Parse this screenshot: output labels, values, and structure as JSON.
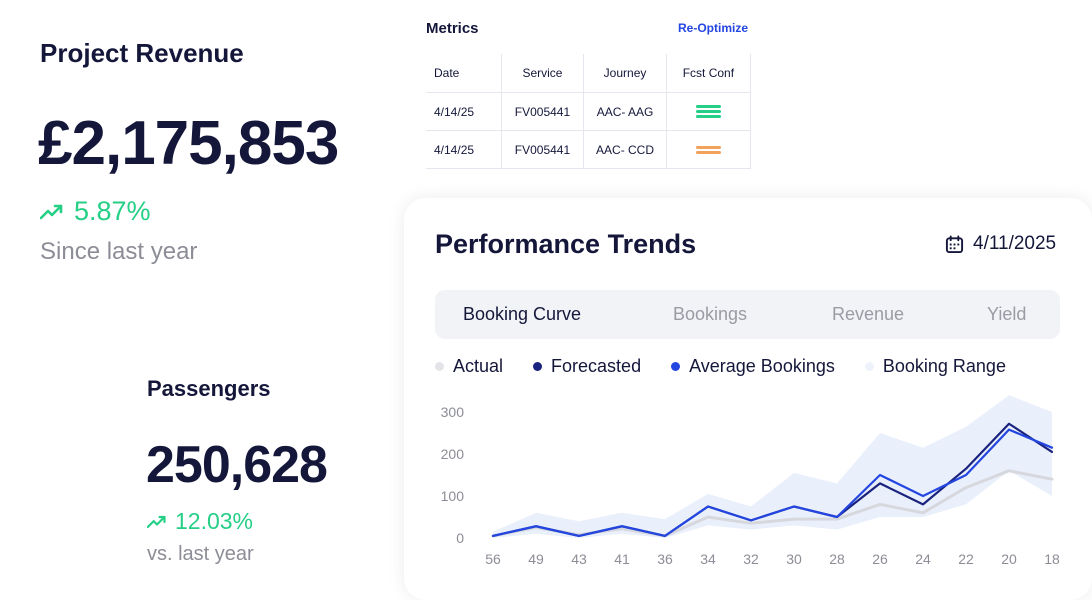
{
  "revenue": {
    "title": "Project Revenue",
    "value": "£2,175,853",
    "change": "5.87%",
    "subtitle": "Since last year",
    "trend_icon": "trending-up-icon",
    "accent": "#25cf86"
  },
  "passengers": {
    "title": "Passengers",
    "value": "250,628",
    "change": "12.03%",
    "subtitle": "vs.  last year",
    "trend_icon": "trending-up-icon"
  },
  "metrics": {
    "title": "Metrics",
    "action": "Re-Optimize",
    "columns": [
      "Date",
      "Service",
      "Journey",
      "Fcst Conf"
    ],
    "rows": [
      {
        "date": "4/14/25",
        "service": "FV005441",
        "journey": "AAC- AAG",
        "conf_color": "#25cf86"
      },
      {
        "date": "4/14/25",
        "service": "FV005441",
        "journey": "AAC- CCD",
        "conf_color": "#f2a25b"
      }
    ]
  },
  "performance": {
    "title": "Performance Trends",
    "date": "4/11/2025",
    "date_icon": "calendar-icon",
    "tabs": [
      {
        "label": "Booking Curve",
        "active": true
      },
      {
        "label": "Bookings",
        "active": false
      },
      {
        "label": "Revenue",
        "active": false
      },
      {
        "label": "Yield",
        "active": false
      }
    ],
    "legend": [
      {
        "label": "Actual",
        "color": "#e3e4e8"
      },
      {
        "label": "Forecasted",
        "color": "#1a237e"
      },
      {
        "label": "Average Bookings",
        "color": "#2446e0"
      },
      {
        "label": "Booking Range",
        "color": "#eef2fa"
      }
    ]
  },
  "chart_data": {
    "type": "line",
    "x": [
      56,
      49,
      43,
      41,
      36,
      34,
      32,
      30,
      28,
      26,
      24,
      22,
      20,
      18
    ],
    "xticks": [
      "56",
      "49",
      "43",
      "41",
      "36",
      "34",
      "32",
      "30",
      "28",
      "26",
      "24",
      "22",
      "20",
      "18"
    ],
    "yticks": [
      "0",
      "100",
      "200",
      "300"
    ],
    "ylim": [
      0,
      300
    ],
    "series": [
      {
        "name": "Actual",
        "color": "#d6d8de",
        "values": [
          5,
          25,
          8,
          22,
          5,
          50,
          35,
          45,
          45,
          80,
          60,
          120,
          160,
          140
        ]
      },
      {
        "name": "Forecasted",
        "color": "#1a237e",
        "values": [
          5,
          28,
          5,
          28,
          5,
          75,
          42,
          75,
          50,
          130,
          80,
          165,
          272,
          205
        ]
      },
      {
        "name": "Average Bookings",
        "color": "#2446e0",
        "values": [
          5,
          28,
          5,
          28,
          5,
          75,
          42,
          75,
          50,
          150,
          100,
          150,
          258,
          215
        ]
      },
      {
        "name": "Booking Range",
        "color": "#e8eefb",
        "upper": [
          15,
          60,
          40,
          60,
          45,
          105,
          75,
          155,
          130,
          250,
          215,
          265,
          340,
          300
        ],
        "lower": [
          0,
          10,
          0,
          10,
          0,
          30,
          20,
          30,
          20,
          50,
          50,
          80,
          160,
          100
        ]
      }
    ]
  }
}
